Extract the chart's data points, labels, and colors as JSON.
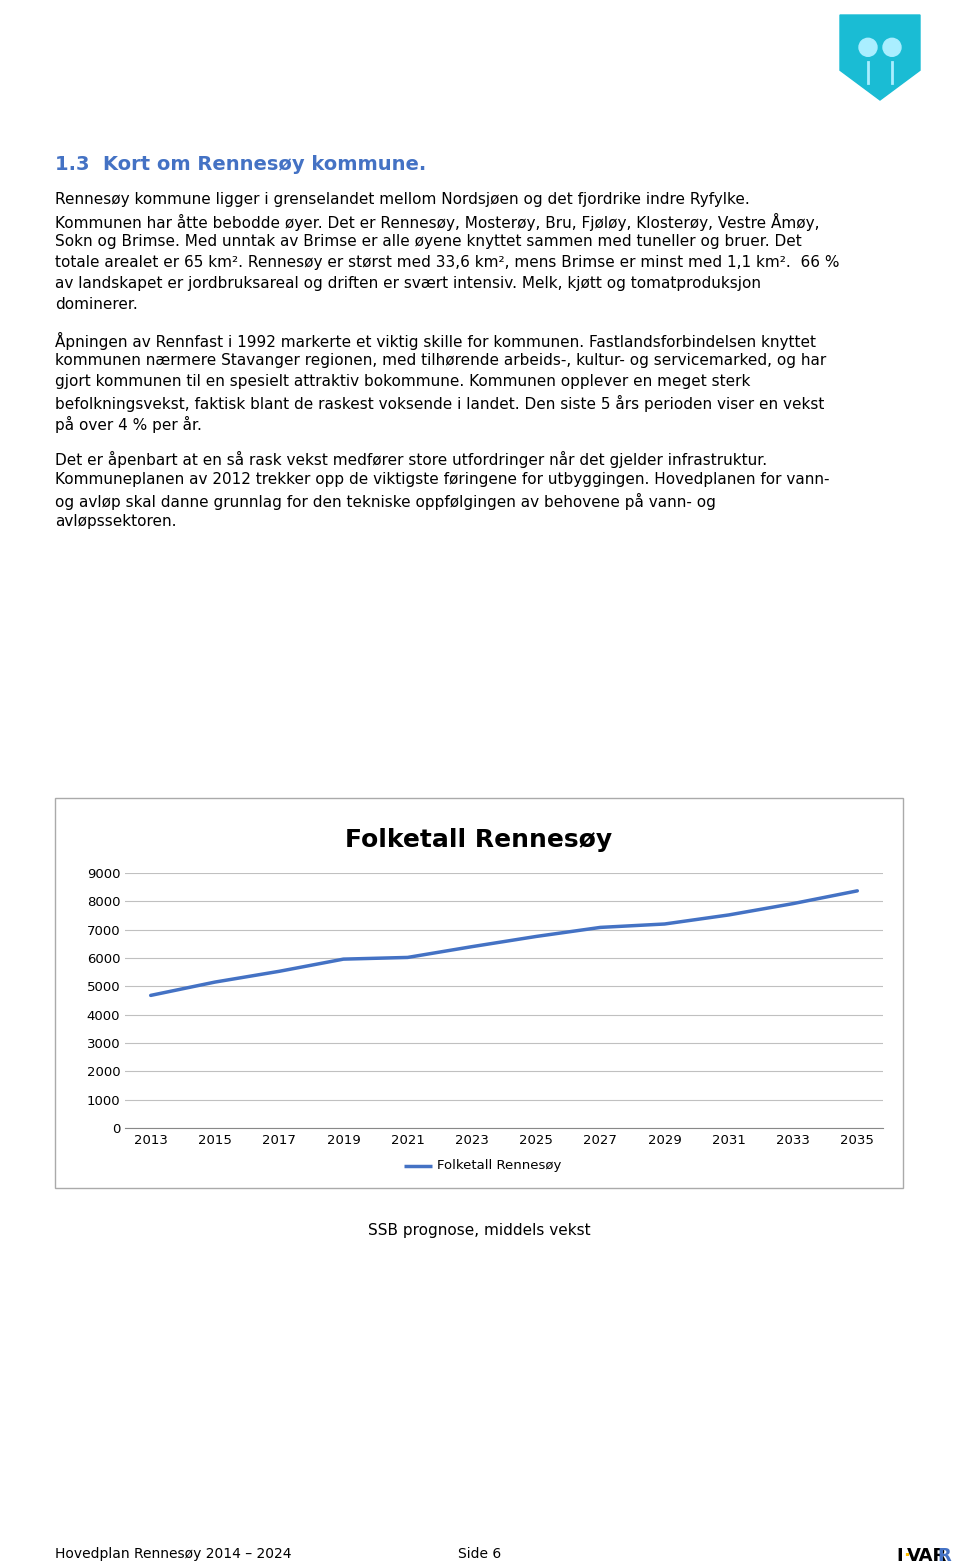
{
  "page_title": "1.3  Kort om Rennesøy kommune.",
  "page_title_color": "#4472C4",
  "body_text": [
    "Rennesøy kommune ligger i grenselandet mellom Nordsjøen og det fjordrike indre Ryfylke.",
    "Kommunen har åtte bebodde øyer. Det er Rennesøy, Mosterøy, Bru, Fjøløy, Klosterøy, Vestre Åmøy,",
    "Sokn og Brimse. Med unntak av Brimse er alle øyene knyttet sammen med tuneller og bruer. Det",
    "totale arealet er 65 km². Rennesøy er størst med 33,6 km², mens Brimse er minst med 1,1 km².  66 %",
    "av landskapet er jordbruksareal og driften er svært intensiv. Melk, kjøtt og tomatproduksjon",
    "dominerer."
  ],
  "body_text2": [
    "Åpningen av Rennfast i 1992 markerte et viktig skille for kommunen. Fastlandsforbindelsen knyttet",
    "kommunen nærmere Stavanger regionen, med tilhørende arbeids-, kultur- og servicemarked, og har",
    "gjort kommunen til en spesielt attraktiv bokommune. Kommunen opplever en meget sterk",
    "befolkningsvekst, faktisk blant de raskest voksende i landet. Den siste 5 års perioden viser en vekst",
    "på over 4 % per år."
  ],
  "body_text3": [
    "Det er åpenbart at en så rask vekst medfører store utfordringer når det gjelder infrastruktur.",
    "Kommuneplanen av 2012 trekker opp de viktigste føringene for utbyggingen. Hovedplanen for vann-",
    "og avløp skal danne grunnlag for den tekniske oppfølgingen av behovene på vann- og",
    "avløpssektoren."
  ],
  "chart_title": "Folketall Rennesøy",
  "chart_title_fontsize": 18,
  "x_years": [
    2013,
    2015,
    2017,
    2019,
    2021,
    2023,
    2025,
    2027,
    2029,
    2031,
    2033,
    2035
  ],
  "y_values": [
    4680,
    5150,
    5530,
    5960,
    6020,
    6400,
    6760,
    7080,
    7200,
    7520,
    7920,
    8370
  ],
  "line_color": "#4472C4",
  "line_width": 2.5,
  "ylim": [
    0,
    9000
  ],
  "yticks": [
    0,
    1000,
    2000,
    3000,
    4000,
    5000,
    6000,
    7000,
    8000,
    9000
  ],
  "legend_label": "Folketall Rennesøy",
  "subtitle": "SSB prognose, middels vekst",
  "footer_left": "Hovedplan Rennesøy 2014 – 2024",
  "footer_center": "Side 6",
  "grid_color": "#C0C0C0",
  "background_color": "#FFFFFF",
  "chart_border_color": "#AAAAAA",
  "text_color": "#000000",
  "body_fontsize": 11,
  "title_fontsize": 14
}
